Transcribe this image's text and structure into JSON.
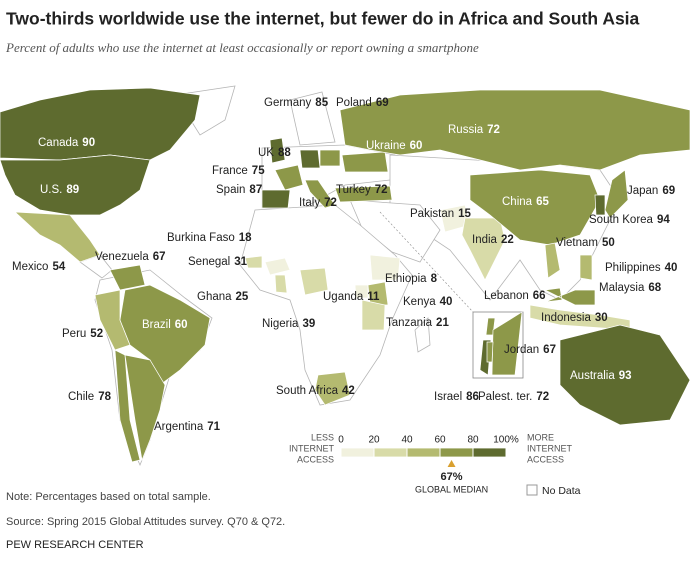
{
  "title": "Two-thirds worldwide use the internet, but fewer do in Africa and South Asia",
  "subtitle": "Percent of adults who use the internet at least occasionally or report owning a smartphone",
  "countries": [
    {
      "name": "Canada",
      "value": 90
    },
    {
      "name": "U.S.",
      "value": 89
    },
    {
      "name": "Mexico",
      "value": 54
    },
    {
      "name": "Venezuela",
      "value": 67
    },
    {
      "name": "Peru",
      "value": 52
    },
    {
      "name": "Brazil",
      "value": 60
    },
    {
      "name": "Chile",
      "value": 78
    },
    {
      "name": "Argentina",
      "value": 71
    },
    {
      "name": "Germany",
      "value": 85
    },
    {
      "name": "Poland",
      "value": 69
    },
    {
      "name": "UK",
      "value": 88
    },
    {
      "name": "France",
      "value": 75
    },
    {
      "name": "Spain",
      "value": 87
    },
    {
      "name": "Italy",
      "value": 72
    },
    {
      "name": "Ukraine",
      "value": 60
    },
    {
      "name": "Russia",
      "value": 72
    },
    {
      "name": "Turkey",
      "value": 72
    },
    {
      "name": "Burkina Faso",
      "value": 18
    },
    {
      "name": "Senegal",
      "value": 31
    },
    {
      "name": "Ghana",
      "value": 25
    },
    {
      "name": "Nigeria",
      "value": 39
    },
    {
      "name": "Uganda",
      "value": 11
    },
    {
      "name": "Ethiopia",
      "value": 8
    },
    {
      "name": "Kenya",
      "value": 40
    },
    {
      "name": "Tanzania",
      "value": 21
    },
    {
      "name": "South Africa",
      "value": 42
    },
    {
      "name": "Pakistan",
      "value": 15
    },
    {
      "name": "India",
      "value": 22
    },
    {
      "name": "China",
      "value": 65
    },
    {
      "name": "Japan",
      "value": 69
    },
    {
      "name": "South Korea",
      "value": 94
    },
    {
      "name": "Vietnam",
      "value": 50
    },
    {
      "name": "Philippines",
      "value": 40
    },
    {
      "name": "Malaysia",
      "value": 68
    },
    {
      "name": "Indonesia",
      "value": 30
    },
    {
      "name": "Lebanon",
      "value": 66
    },
    {
      "name": "Jordan",
      "value": 67
    },
    {
      "name": "Israel",
      "value": 86
    },
    {
      "name": "Palest. ter.",
      "value": 72
    },
    {
      "name": "Australia",
      "value": 93
    }
  ],
  "legend": {
    "less": [
      "LESS",
      "INTERNET",
      "ACCESS"
    ],
    "more": [
      "MORE",
      "INTERNET",
      "ACCESS"
    ],
    "ticks": [
      0,
      20,
      40,
      60,
      80,
      {
        "value": 100,
        "label": "100%"
      }
    ],
    "colors": [
      "#f1f1de",
      "#d8dba8",
      "#b4ba70",
      "#8d9849",
      "#5e6b2f"
    ],
    "median": {
      "value": 67,
      "label": "67%"
    },
    "median_text": "GLOBAL MEDIAN",
    "no_data": "No Data"
  },
  "note": "Note: Percentages based on total sample.",
  "source": "Source: Spring 2015 Global Attitudes survey. Q70 & Q72.",
  "org": "PEW RESEARCH CENTER"
}
